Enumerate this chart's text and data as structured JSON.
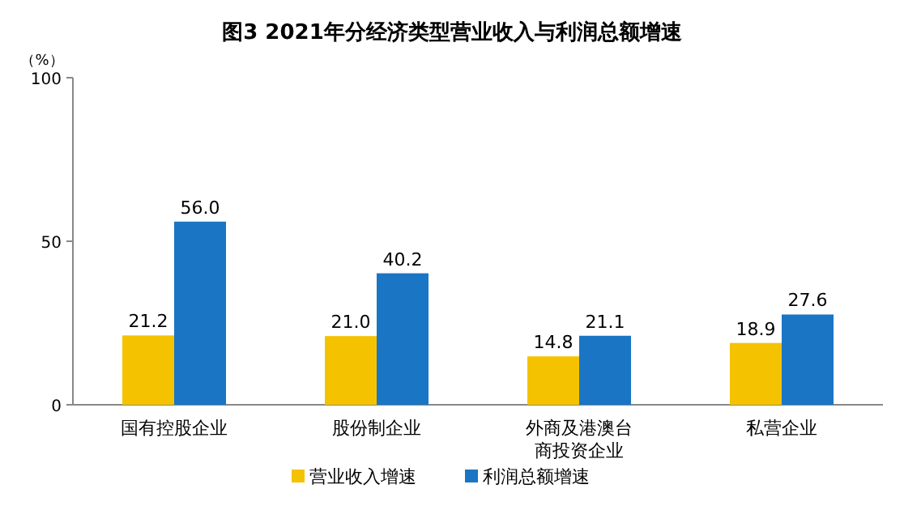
{
  "chart_data": {
    "type": "bar",
    "title": "图3  2021年分经济类型营业收入与利润总额增速",
    "ylabel": "（%）",
    "categories": [
      "国有控股企业",
      "股份制企业",
      "外商及港澳台商投资企业",
      "私营企业"
    ],
    "series": [
      {
        "name": "营业收入增速",
        "color": "#f5c200",
        "values": [
          21.2,
          21.0,
          14.8,
          18.9
        ],
        "value_labels": [
          "21.2",
          "21.0",
          "14.8",
          "18.9"
        ]
      },
      {
        "name": "利润总额增速",
        "color": "#1a75c4",
        "values": [
          56.0,
          40.2,
          21.1,
          27.6
        ],
        "value_labels": [
          "56.0",
          "40.2",
          "21.1",
          "27.6"
        ]
      }
    ],
    "ylim": [
      0,
      100
    ],
    "yticks": [
      0,
      50,
      100
    ],
    "legend": "bottom"
  }
}
